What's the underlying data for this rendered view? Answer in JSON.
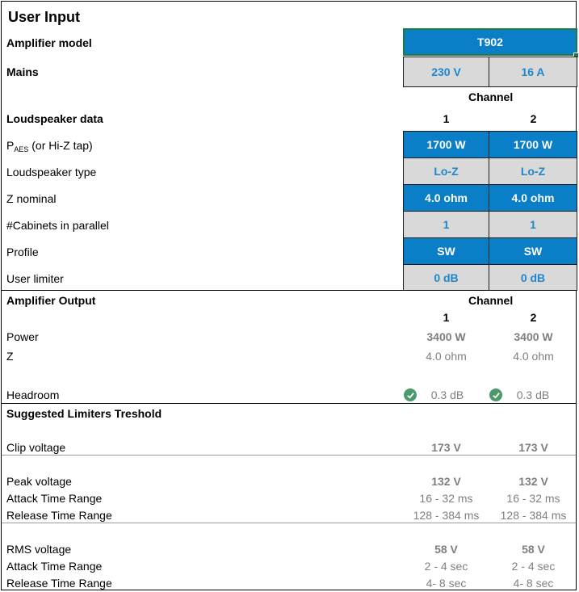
{
  "title": "User Input",
  "amplifier": {
    "label": "Amplifier model",
    "model": "T902",
    "mains_label": "Mains",
    "mains_voltage": "230 V",
    "mains_current": "16 A"
  },
  "loudspeaker": {
    "channel_header": "Channel",
    "section_label": "Loudspeaker data",
    "channels": [
      "1",
      "2"
    ],
    "rows": [
      {
        "label_main": "P",
        "label_sub": "AES",
        "label_rest": " (or Hi-Z tap)",
        "values": [
          "1700 W",
          "1700 W"
        ],
        "style": "blue"
      },
      {
        "label": "Loudspeaker type",
        "values": [
          "Lo-Z",
          "Lo-Z"
        ],
        "style": "grey"
      },
      {
        "label": "Z nominal",
        "values": [
          "4.0 ohm",
          "4.0 ohm"
        ],
        "style": "blue"
      },
      {
        "label": "#Cabinets in parallel",
        "values": [
          "1",
          "1"
        ],
        "style": "grey"
      },
      {
        "label": "Profile",
        "values": [
          "SW",
          "SW"
        ],
        "style": "blue"
      },
      {
        "label": "User limiter",
        "values": [
          "0 dB",
          "0 dB"
        ],
        "style": "grey"
      }
    ]
  },
  "output": {
    "section_label": "Amplifier Output",
    "channel_header": "Channel",
    "channels": [
      "1",
      "2"
    ],
    "power_label": "Power",
    "power": [
      "3400 W",
      "3400 W"
    ],
    "z_label": "Z",
    "z": [
      "4.0 ohm",
      "4.0 ohm"
    ],
    "headroom_label": "Headroom",
    "headroom": [
      "0.3 dB",
      "0.3 dB"
    ],
    "headroom_status_icon": "check-circle-icon",
    "status_color": "#4c9a6a"
  },
  "limiters": {
    "section_label": "Suggested Limiters Treshold",
    "clip_label": "Clip voltage",
    "clip": [
      "173 V",
      "173 V"
    ],
    "peak_label": "Peak voltage",
    "peak": [
      "132 V",
      "132 V"
    ],
    "peak_attack_label": "Attack Time Range",
    "peak_attack": [
      "16 - 32 ms",
      "16 - 32 ms"
    ],
    "peak_release_label": "Release Time Range",
    "peak_release": [
      "128 - 384 ms",
      "128 - 384 ms"
    ],
    "rms_label": "RMS voltage",
    "rms": [
      "58 V",
      "58 V"
    ],
    "rms_attack_label": "Attack Time Range",
    "rms_attack": [
      "2 - 4 sec",
      "2 - 4 sec"
    ],
    "rms_release_label": "Release Time Range",
    "rms_release": [
      "4- 8 sec",
      "4- 8 sec"
    ]
  },
  "colors": {
    "input_blue": "#0a7fc7",
    "input_grey": "#d9d9d9",
    "link_blue": "#1e86cc",
    "muted_text": "#7f7f7f"
  }
}
